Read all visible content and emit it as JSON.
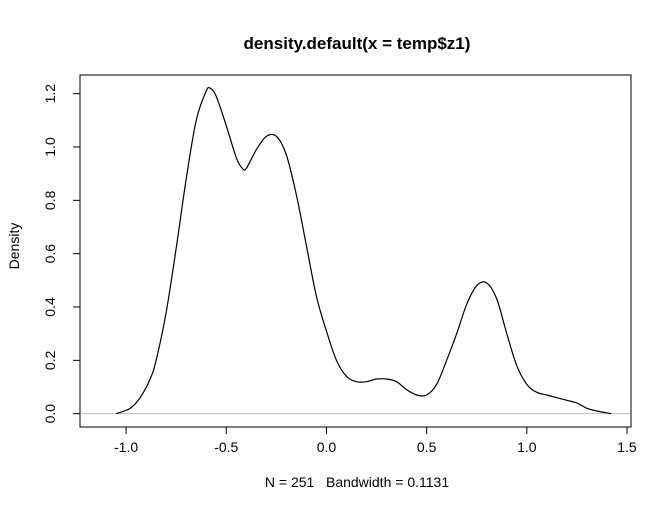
{
  "chart_data": {
    "type": "line",
    "title": "density.default(x = temp$z1)",
    "xlabel": "N = 251   Bandwidth = 0.1131",
    "ylabel": "Density",
    "xlim": [
      -1.23,
      1.52
    ],
    "ylim": [
      -0.05,
      1.27
    ],
    "xticks": [
      -1.0,
      -0.5,
      0.0,
      0.5,
      1.0,
      1.5
    ],
    "xtick_labels": [
      "-1.0",
      "-0.5",
      "0.0",
      "0.5",
      "1.0",
      "1.5"
    ],
    "yticks": [
      0.0,
      0.2,
      0.4,
      0.6,
      0.8,
      1.0,
      1.2
    ],
    "ytick_labels": [
      "0.0",
      "0.2",
      "0.4",
      "0.6",
      "0.8",
      "1.0",
      "1.2"
    ],
    "baseline": 0,
    "grid": false,
    "colors": {
      "line": "#000000",
      "baseline": "#bebebe",
      "frame": "#000000"
    },
    "series": [
      {
        "x": [
          -1.05,
          -0.98,
          -0.93,
          -0.88,
          -0.85,
          -0.8,
          -0.75,
          -0.7,
          -0.65,
          -0.6,
          -0.58,
          -0.55,
          -0.5,
          -0.45,
          -0.42,
          -0.4,
          -0.35,
          -0.3,
          -0.25,
          -0.2,
          -0.15,
          -0.1,
          -0.05,
          0.0,
          0.05,
          0.1,
          0.15,
          0.2,
          0.25,
          0.3,
          0.35,
          0.4,
          0.45,
          0.5,
          0.55,
          0.6,
          0.65,
          0.7,
          0.75,
          0.8,
          0.85,
          0.9,
          0.95,
          1.0,
          1.05,
          1.1,
          1.15,
          1.2,
          1.25,
          1.3,
          1.35,
          1.42
        ],
        "y": [
          0.0,
          0.02,
          0.06,
          0.13,
          0.2,
          0.38,
          0.62,
          0.88,
          1.1,
          1.21,
          1.22,
          1.19,
          1.08,
          0.96,
          0.92,
          0.92,
          0.99,
          1.04,
          1.04,
          0.97,
          0.82,
          0.63,
          0.44,
          0.31,
          0.2,
          0.14,
          0.12,
          0.12,
          0.13,
          0.13,
          0.12,
          0.09,
          0.07,
          0.07,
          0.11,
          0.2,
          0.3,
          0.41,
          0.48,
          0.49,
          0.43,
          0.3,
          0.18,
          0.11,
          0.08,
          0.07,
          0.06,
          0.05,
          0.04,
          0.02,
          0.01,
          0.0
        ]
      }
    ]
  }
}
